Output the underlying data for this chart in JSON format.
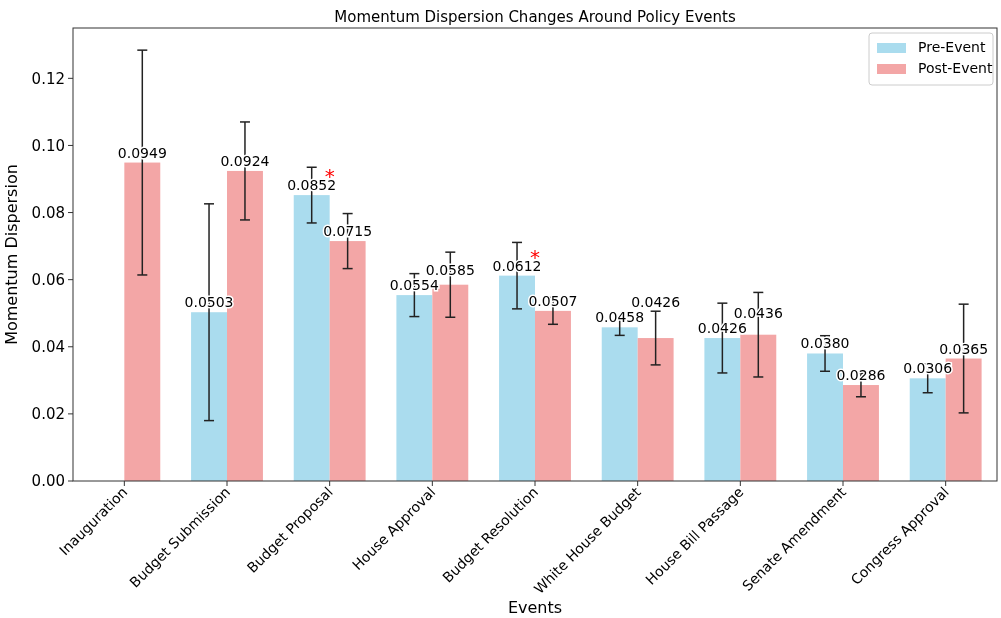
{
  "chart_data": {
    "type": "bar",
    "title": "Momentum Dispersion Changes Around Policy Events",
    "xlabel": "Events",
    "ylabel": "Momentum Dispersion",
    "categories": [
      "Inauguration",
      "Budget Submission",
      "Budget Proposal",
      "House Approval",
      "Budget Resolution",
      "White House Budget",
      "House Bill Passage",
      "Senate Amendment",
      "Congress Approval"
    ],
    "series": [
      {
        "name": "Pre-Event",
        "color": "#aadcee",
        "values": [
          null,
          0.0503,
          0.0852,
          0.0554,
          0.0612,
          0.0458,
          0.0426,
          0.038,
          0.0306
        ],
        "errors": [
          null,
          0.0323,
          0.0083,
          0.0064,
          0.0099,
          0.0024,
          0.0104,
          0.0053,
          0.0043
        ],
        "value_labels": [
          null,
          "0.0503",
          "0.0852",
          "0.0554",
          "0.0612",
          "0.0458",
          "0.0426",
          "0.0380",
          "0.0306"
        ]
      },
      {
        "name": "Post-Event",
        "color": "#f3a6a6",
        "values": [
          0.0949,
          0.0924,
          0.0715,
          0.0585,
          0.0507,
          0.0426,
          0.0436,
          0.0286,
          0.0365
        ],
        "errors": [
          0.0335,
          0.0146,
          0.0082,
          0.0097,
          0.004,
          0.008,
          0.0126,
          0.0035,
          0.0162
        ],
        "value_labels": [
          "0.0949",
          "0.0924",
          "0.0715",
          "0.0585",
          "0.0507",
          "0.0426",
          "0.0436",
          "0.0286",
          "0.0365"
        ]
      }
    ],
    "annotations": [
      {
        "text": "*",
        "x": "Budget Proposal",
        "y": 0.0852
      },
      {
        "text": "*",
        "x": "Budget Resolution",
        "y": 0.0612
      }
    ],
    "ylim": [
      0,
      0.135
    ],
    "yticks": [
      {
        "value": 0,
        "label": "0.00"
      },
      {
        "value": 0.02,
        "label": "0.02"
      },
      {
        "value": 0.04,
        "label": "0.04"
      },
      {
        "value": 0.06,
        "label": "0.06"
      },
      {
        "value": 0.08,
        "label": "0.08"
      },
      {
        "value": 0.1,
        "label": "0.10"
      },
      {
        "value": 0.12,
        "label": "0.12"
      }
    ],
    "legend": "top right",
    "grid": false
  }
}
